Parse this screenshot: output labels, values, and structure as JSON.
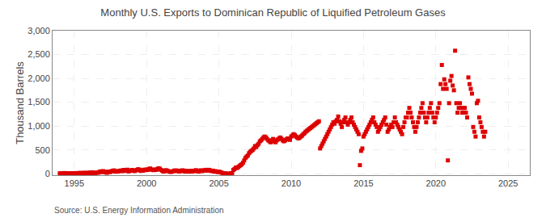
{
  "chart_data": {
    "type": "scatter",
    "title": "Monthly U.S. Exports to Dominican Republic of Liquified Petroleum Gases",
    "y_label": "Thousand Barrels",
    "annotations": [
      "Source: U.S. Energy Information Administration"
    ],
    "color": "#dd0000",
    "marker": "square",
    "grid": true,
    "xlim": [
      1993.5,
      2026.5
    ],
    "ylim": [
      -30,
      3000
    ],
    "xticks": [
      1995,
      2000,
      2005,
      2010,
      2015,
      2020,
      2025
    ],
    "yticks": [
      0,
      500,
      {
        "value": 1000,
        "label": "1,000"
      },
      {
        "value": 1500,
        "label": "1,500"
      },
      {
        "value": 2000,
        "label": "2,000"
      },
      {
        "value": 2500,
        "label": "2,500"
      },
      {
        "value": 3000,
        "label": "3,000"
      }
    ],
    "x": [
      1994.0,
      1994.083,
      1994.167,
      1994.25,
      1994.333,
      1994.417,
      1994.5,
      1994.583,
      1994.667,
      1994.75,
      1994.833,
      1994.917,
      1995.0,
      1995.083,
      1995.167,
      1995.25,
      1995.333,
      1995.417,
      1995.5,
      1995.583,
      1995.667,
      1995.75,
      1995.833,
      1995.917,
      1996.0,
      1996.083,
      1996.167,
      1996.25,
      1996.333,
      1996.417,
      1996.5,
      1996.583,
      1996.667,
      1996.75,
      1996.833,
      1996.917,
      1997.0,
      1997.083,
      1997.167,
      1997.25,
      1997.333,
      1997.417,
      1997.5,
      1997.583,
      1997.667,
      1997.75,
      1997.833,
      1997.917,
      1998.0,
      1998.083,
      1998.167,
      1998.25,
      1998.333,
      1998.417,
      1998.5,
      1998.583,
      1998.667,
      1998.75,
      1998.833,
      1998.917,
      1999.0,
      1999.083,
      1999.167,
      1999.25,
      1999.333,
      1999.417,
      1999.5,
      1999.583,
      1999.667,
      1999.75,
      1999.833,
      1999.917,
      2000.0,
      2000.083,
      2000.167,
      2000.25,
      2000.333,
      2000.417,
      2000.5,
      2000.583,
      2000.667,
      2000.75,
      2000.833,
      2000.917,
      2001.0,
      2001.083,
      2001.167,
      2001.25,
      2001.333,
      2001.417,
      2001.5,
      2001.583,
      2001.667,
      2001.75,
      2001.833,
      2001.917,
      2002.0,
      2002.083,
      2002.167,
      2002.25,
      2002.333,
      2002.417,
      2002.5,
      2002.583,
      2002.667,
      2002.75,
      2002.833,
      2002.917,
      2003.0,
      2003.083,
      2003.167,
      2003.25,
      2003.333,
      2003.417,
      2003.5,
      2003.583,
      2003.667,
      2003.75,
      2003.833,
      2003.917,
      2004.0,
      2004.083,
      2004.167,
      2004.25,
      2004.333,
      2004.417,
      2004.5,
      2004.583,
      2004.667,
      2004.75,
      2004.833,
      2004.917,
      2005.0,
      2005.083,
      2005.167,
      2005.25,
      2005.333,
      2005.417,
      2005.5,
      2005.583,
      2005.667,
      2005.75,
      2005.833,
      2005.917,
      2006.0,
      2006.083,
      2006.167,
      2006.25,
      2006.333,
      2006.417,
      2006.5,
      2006.583,
      2006.667,
      2006.75,
      2006.833,
      2006.917,
      2007.0,
      2007.083,
      2007.167,
      2007.25,
      2007.333,
      2007.417,
      2007.5,
      2007.583,
      2007.667,
      2007.75,
      2007.833,
      2007.917,
      2008.0,
      2008.083,
      2008.167,
      2008.25,
      2008.333,
      2008.417,
      2008.5,
      2008.583,
      2008.667,
      2008.75,
      2008.833,
      2008.917,
      2009.0,
      2009.083,
      2009.167,
      2009.25,
      2009.333,
      2009.417,
      2009.5,
      2009.583,
      2009.667,
      2009.75,
      2009.833,
      2009.917,
      2010.0,
      2010.083,
      2010.167,
      2010.25,
      2010.333,
      2010.417,
      2010.5,
      2010.583,
      2010.667,
      2010.75,
      2010.833,
      2010.917,
      2011.0,
      2011.083,
      2011.167,
      2011.25,
      2011.333,
      2011.417,
      2011.5,
      2011.583,
      2011.667,
      2011.75,
      2011.833,
      2011.917,
      2012.0,
      2012.083,
      2012.167,
      2012.25,
      2012.333,
      2012.417,
      2012.5,
      2012.583,
      2012.667,
      2012.75,
      2012.833,
      2012.917,
      2013.0,
      2013.083,
      2013.167,
      2013.25,
      2013.333,
      2013.417,
      2013.5,
      2013.583,
      2013.667,
      2013.75,
      2013.833,
      2013.917,
      2014.0,
      2014.083,
      2014.167,
      2014.25,
      2014.333,
      2014.417,
      2014.5,
      2014.583,
      2014.667,
      2014.75,
      2014.833,
      2014.917,
      2015.0,
      2015.083,
      2015.167,
      2015.25,
      2015.333,
      2015.417,
      2015.5,
      2015.583,
      2015.667,
      2015.75,
      2015.833,
      2015.917,
      2016.0,
      2016.083,
      2016.167,
      2016.25,
      2016.333,
      2016.417,
      2016.5,
      2016.583,
      2016.667,
      2016.75,
      2016.833,
      2016.917,
      2017.0,
      2017.083,
      2017.167,
      2017.25,
      2017.333,
      2017.417,
      2017.5,
      2017.583,
      2017.667,
      2017.75,
      2017.833,
      2017.917,
      2018.0,
      2018.083,
      2018.167,
      2018.25,
      2018.333,
      2018.417,
      2018.5,
      2018.583,
      2018.667,
      2018.75,
      2018.833,
      2018.917,
      2019.0,
      2019.083,
      2019.167,
      2019.25,
      2019.333,
      2019.417,
      2019.5,
      2019.583,
      2019.667,
      2019.75,
      2019.833,
      2019.917,
      2020.0,
      2020.083,
      2020.167,
      2020.25,
      2020.333,
      2020.417,
      2020.5,
      2020.583,
      2020.667,
      2020.75,
      2020.833,
      2020.917,
      2021.0,
      2021.083,
      2021.167,
      2021.25,
      2021.333,
      2021.417,
      2021.5,
      2021.583,
      2021.667,
      2021.75,
      2021.833,
      2021.917,
      2022.0,
      2022.083,
      2022.167,
      2022.25,
      2022.333,
      2022.417,
      2022.5,
      2022.583,
      2022.667,
      2022.75,
      2022.833,
      2022.917,
      2023.0,
      2023.083,
      2023.167,
      2023.25,
      2023.333,
      2023.417
    ],
    "values": [
      10,
      5,
      8,
      12,
      15,
      10,
      8,
      5,
      10,
      6,
      10,
      8,
      12,
      10,
      15,
      8,
      10,
      20,
      12,
      8,
      18,
      20,
      10,
      15,
      20,
      25,
      12,
      30,
      20,
      10,
      18,
      28,
      22,
      40,
      50,
      35,
      55,
      40,
      30,
      20,
      45,
      35,
      40,
      55,
      60,
      70,
      45,
      55,
      45,
      55,
      60,
      70,
      55,
      80,
      60,
      75,
      85,
      50,
      60,
      70,
      80,
      65,
      55,
      70,
      80,
      95,
      85,
      60,
      75,
      65,
      85,
      75,
      90,
      80,
      100,
      110,
      90,
      80,
      75,
      90,
      80,
      100,
      115,
      105,
      80,
      65,
      45,
      55,
      75,
      65,
      55,
      45,
      38,
      45,
      55,
      65,
      70,
      55,
      65,
      45,
      55,
      65,
      72,
      55,
      45,
      62,
      55,
      45,
      52,
      62,
      45,
      55,
      65,
      75,
      55,
      45,
      62,
      72,
      55,
      65,
      72,
      82,
      65,
      72,
      82,
      65,
      55,
      65,
      45,
      55,
      45,
      35,
      45,
      35,
      25,
      15,
      10,
      8,
      5,
      2,
      0,
      -5,
      10,
      15,
      80,
      100,
      130,
      120,
      140,
      160,
      180,
      200,
      230,
      280,
      330,
      360,
      380,
      430,
      460,
      480,
      500,
      530,
      580,
      560,
      600,
      630,
      680,
      700,
      730,
      760,
      780,
      760,
      730,
      700,
      680,
      660,
      700,
      730,
      680,
      660,
      700,
      720,
      740,
      760,
      730,
      700,
      680,
      700,
      720,
      740,
      730,
      710,
      780,
      800,
      830,
      810,
      780,
      760,
      740,
      760,
      780,
      800,
      830,
      850,
      880,
      900,
      920,
      940,
      960,
      980,
      1000,
      1020,
      1040,
      1060,
      1080,
      1100,
      530,
      580,
      630,
      680,
      730,
      780,
      830,
      880,
      930,
      980,
      1030,
      1080,
      1050,
      1100,
      1130,
      1200,
      1100,
      1050,
      980,
      1080,
      1130,
      1180,
      1080,
      1030,
      1080,
      1130,
      1180,
      1080,
      1030,
      980,
      930,
      880,
      830,
      180,
      480,
      530,
      780,
      830,
      880,
      930,
      980,
      1030,
      1080,
      1130,
      1180,
      1080,
      1030,
      980,
      880,
      930,
      980,
      1030,
      1080,
      1130,
      1180,
      1030,
      880,
      930,
      980,
      1030,
      980,
      1080,
      1180,
      1080,
      1030,
      980,
      930,
      880,
      830,
      980,
      1080,
      1180,
      1180,
      1280,
      1380,
      1280,
      1180,
      1080,
      980,
      880,
      980,
      1080,
      1180,
      1280,
      1380,
      1480,
      1280,
      1180,
      1080,
      1180,
      1280,
      1380,
      1480,
      1280,
      1180,
      1080,
      1180,
      1280,
      1380,
      1480,
      1880,
      2280,
      1780,
      1980,
      1880,
      1780,
      280,
      1480,
      1950,
      2050,
      1850,
      1750,
      2580,
      1480,
      1280,
      1380,
      1480,
      1380,
      1280,
      1380,
      1380,
      1280,
      1180,
      2020,
      1880,
      1780,
      1680,
      980,
      880,
      780,
      1480,
      1530,
      1180,
      1080,
      980,
      880,
      780,
      880
    ]
  }
}
